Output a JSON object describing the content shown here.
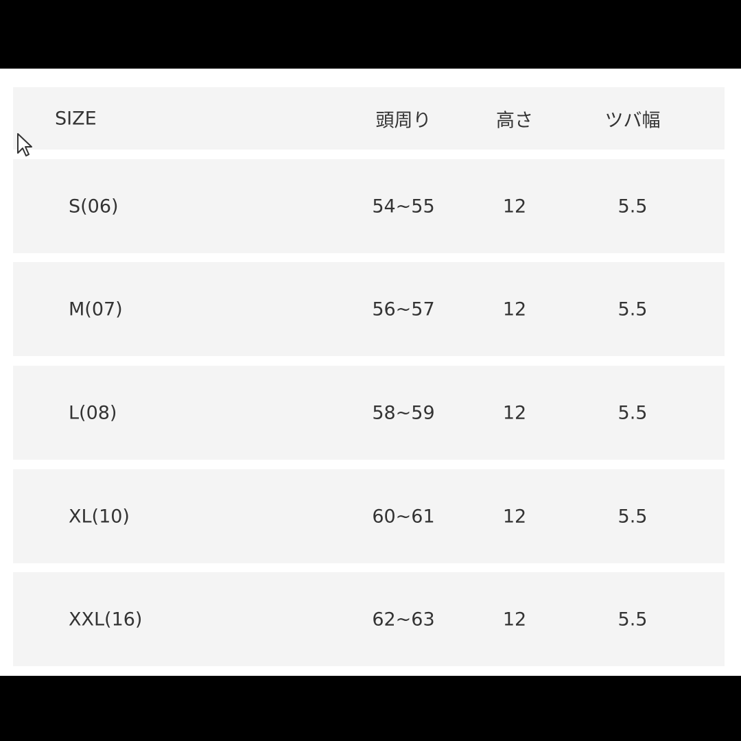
{
  "table": {
    "headers": [
      "SIZE",
      "頭周り",
      "高さ",
      "ツバ幅"
    ],
    "rows": [
      [
        "S(06)",
        "54~55",
        "12",
        "5.5"
      ],
      [
        "M(07)",
        "56~57",
        "12",
        "5.5"
      ],
      [
        "L(08)",
        "58~59",
        "12",
        "5.5"
      ],
      [
        "XL(10)",
        "60~61",
        "12",
        "5.5"
      ],
      [
        "XXL(16)",
        "62~63",
        "12",
        "5.5"
      ]
    ]
  },
  "colors": {
    "row_background": "#f4f4f4",
    "text": "#333333",
    "frame": "#000000"
  }
}
